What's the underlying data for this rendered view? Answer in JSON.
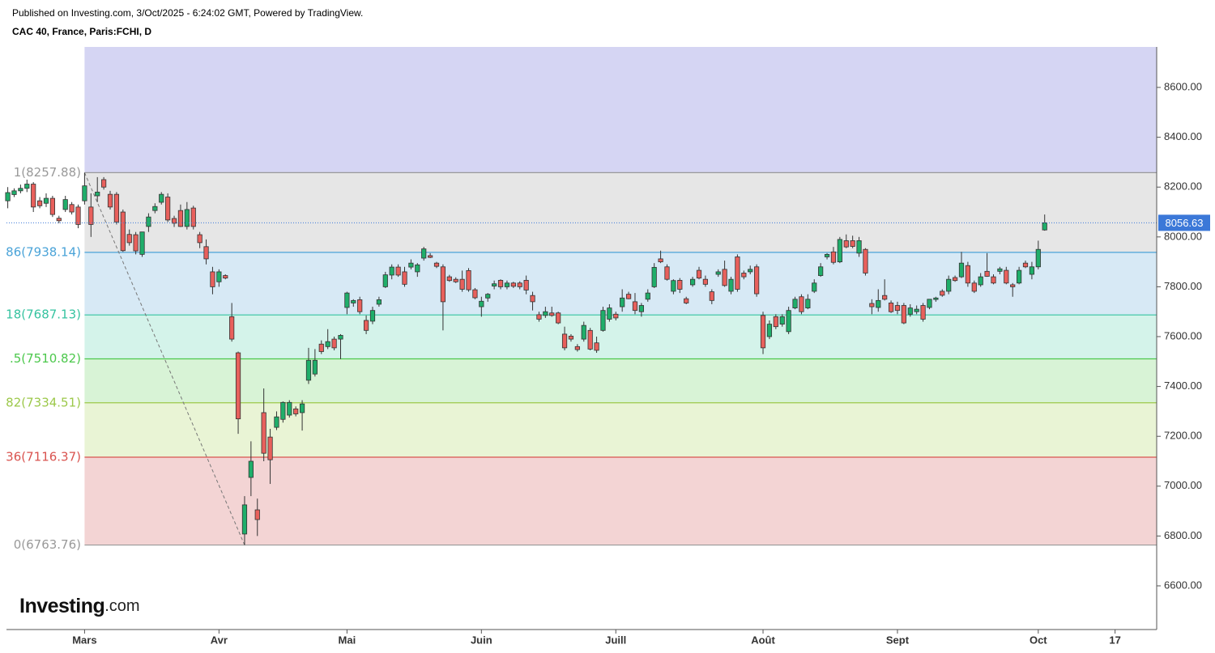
{
  "header": {
    "published": "Published on Investing.com, 3/Oct/2025 - 6:24:02 GMT, Powered by TradingView.",
    "instrument": "CAC 40, France, Paris:FCHI, D"
  },
  "logo": {
    "brand": "Investing",
    "suffix": ".com"
  },
  "chart_data": {
    "type": "candlestick",
    "up_color": "#1fae6a",
    "down_color": "#e8605c",
    "outline_color": "#333333",
    "last_price_color": "#3b78d8",
    "xlim": [
      -0.2,
      179.5
    ],
    "xticks": [
      {
        "value": 12,
        "label": "Mars"
      },
      {
        "value": 33,
        "label": "Avr"
      },
      {
        "value": 53,
        "label": "Mai"
      },
      {
        "value": 74,
        "label": "Juin"
      },
      {
        "value": 95,
        "label": "Juill"
      },
      {
        "value": 118,
        "label": "Août"
      },
      {
        "value": 139,
        "label": "Sept"
      },
      {
        "value": 161,
        "label": "Oct"
      },
      {
        "value": 173,
        "label": "17"
      }
    ],
    "ylim": [
      6424.7,
      8762.4
    ],
    "yticks": [
      {
        "value": 6600,
        "label": "6600.00"
      },
      {
        "value": 6800,
        "label": "6800.00"
      },
      {
        "value": 7000,
        "label": "7000.00"
      },
      {
        "value": 7200,
        "label": "7200.00"
      },
      {
        "value": 7400,
        "label": "7400.00"
      },
      {
        "value": 7600,
        "label": "7600.00"
      },
      {
        "value": 7800,
        "label": "7800.00"
      },
      {
        "value": 8000,
        "label": "8000.00"
      },
      {
        "value": 8200,
        "label": "8200.00"
      },
      {
        "value": 8400,
        "label": "8400.00"
      },
      {
        "value": 8600,
        "label": "8600.00"
      }
    ],
    "fib": {
      "top_fill": "#d5d5f3",
      "levels": [
        {
          "value": 8257.88,
          "label": "1(8257.88)",
          "color": "#999999",
          "fill": "#e6e6e6"
        },
        {
          "value": 7938.14,
          "label": "86(7938.14)",
          "color": "#4aa3d8",
          "fill": "#d7e9f5"
        },
        {
          "value": 7687.13,
          "label": "18(7687.13)",
          "color": "#36c3a0",
          "fill": "#d4f3ea"
        },
        {
          "value": 7510.82,
          "label": ".5(7510.82)",
          "color": "#4cc84c",
          "fill": "#d8f3d6"
        },
        {
          "value": 7334.51,
          "label": "82(7334.51)",
          "color": "#9cc84a",
          "fill": "#e9f4d5"
        },
        {
          "value": 7116.37,
          "label": "36(7116.37)",
          "color": "#d9534f",
          "fill": "#f3d4d4"
        },
        {
          "value": 6763.76,
          "label": "0(6763.76)",
          "color": "#999999"
        }
      ]
    },
    "ohlc": [
      [
        8145,
        8200,
        8115,
        8178
      ],
      [
        8170,
        8195,
        8160,
        8185
      ],
      [
        8185,
        8210,
        8175,
        8195
      ],
      [
        8195,
        8230,
        8180,
        8212
      ],
      [
        8212,
        8220,
        8100,
        8120
      ],
      [
        8145,
        8160,
        8115,
        8125
      ],
      [
        8135,
        8175,
        8120,
        8155
      ],
      [
        8155,
        8165,
        8080,
        8090
      ],
      [
        8075,
        8085,
        8055,
        8065
      ],
      [
        8110,
        8165,
        8100,
        8150
      ],
      [
        8130,
        8140,
        8090,
        8100
      ],
      [
        8120,
        8130,
        8035,
        8050
      ],
      [
        8145,
        8257.88,
        8130,
        8205
      ],
      [
        8120,
        8175,
        8000,
        8050
      ],
      [
        8165,
        8240,
        8140,
        8180
      ],
      [
        8230,
        8240,
        8190,
        8200
      ],
      [
        8171,
        8185,
        8110,
        8120
      ],
      [
        8171,
        8180,
        8050,
        8060
      ],
      [
        8100,
        8110,
        7940,
        7945
      ],
      [
        8010,
        8030,
        7965,
        7977
      ],
      [
        8009,
        8020,
        7930,
        7944
      ],
      [
        7930,
        8020,
        7920,
        8020
      ],
      [
        8042,
        8095,
        8020,
        8080
      ],
      [
        8106,
        8135,
        8095,
        8122
      ],
      [
        8139,
        8180,
        8130,
        8171
      ],
      [
        8160,
        8175,
        8060,
        8068
      ],
      [
        8074,
        8085,
        8040,
        8055
      ],
      [
        8106,
        8130,
        8040,
        8042
      ],
      [
        8042,
        8140,
        8030,
        8110
      ],
      [
        8116,
        8125,
        8030,
        8042
      ],
      [
        8009,
        8020,
        7955,
        7977
      ],
      [
        7961,
        7990,
        7890,
        7912
      ],
      [
        7860,
        7880,
        7770,
        7800
      ],
      [
        7820,
        7870,
        7800,
        7860
      ],
      [
        7845,
        7850,
        7830,
        7835
      ],
      [
        7680,
        7735,
        7580,
        7590
      ],
      [
        7535,
        7540,
        7210,
        7270
      ],
      [
        6808,
        6960,
        6763.76,
        6925
      ],
      [
        7035,
        7180,
        6960,
        7100
      ],
      [
        6905,
        6950,
        6800,
        6866
      ],
      [
        7295,
        7392,
        7100,
        7132
      ],
      [
        7197,
        7230,
        7009,
        7106
      ],
      [
        7236,
        7300,
        7225,
        7278
      ],
      [
        7268,
        7340,
        7255,
        7336
      ],
      [
        7285,
        7345,
        7275,
        7336
      ],
      [
        7310,
        7320,
        7280,
        7290
      ],
      [
        7295,
        7345,
        7223,
        7330
      ],
      [
        7425,
        7555,
        7410,
        7505
      ],
      [
        7450,
        7550,
        7440,
        7505
      ],
      [
        7570,
        7585,
        7530,
        7540
      ],
      [
        7560,
        7630,
        7550,
        7580
      ],
      [
        7590,
        7600,
        7545,
        7555
      ],
      [
        7590,
        7610,
        7510,
        7605
      ],
      [
        7717,
        7780,
        7690,
        7775
      ],
      [
        7735,
        7750,
        7720,
        7745
      ],
      [
        7748,
        7760,
        7690,
        7700
      ],
      [
        7665,
        7685,
        7610,
        7625
      ],
      [
        7662,
        7720,
        7650,
        7705
      ],
      [
        7730,
        7760,
        7720,
        7748
      ],
      [
        7800,
        7860,
        7795,
        7848
      ],
      [
        7847,
        7890,
        7830,
        7879
      ],
      [
        7879,
        7890,
        7840,
        7847
      ],
      [
        7860,
        7880,
        7800,
        7810
      ],
      [
        7879,
        7910,
        7870,
        7895
      ],
      [
        7860,
        7895,
        7840,
        7888
      ],
      [
        7915,
        7960,
        7905,
        7952
      ],
      [
        7925,
        7935,
        7915,
        7918
      ],
      [
        7895,
        7900,
        7875,
        7882
      ],
      [
        7880,
        7890,
        7625,
        7740
      ],
      [
        7840,
        7848,
        7820,
        7825
      ],
      [
        7830,
        7838,
        7815,
        7820
      ],
      [
        7830,
        7865,
        7780,
        7790
      ],
      [
        7865,
        7875,
        7780,
        7788
      ],
      [
        7788,
        7795,
        7750,
        7756
      ],
      [
        7720,
        7760,
        7680,
        7742
      ],
      [
        7755,
        7775,
        7740,
        7770
      ],
      [
        7803,
        7825,
        7790,
        7812
      ],
      [
        7826,
        7830,
        7790,
        7800
      ],
      [
        7800,
        7825,
        7790,
        7815
      ],
      [
        7815,
        7820,
        7795,
        7802
      ],
      [
        7815,
        7822,
        7790,
        7800
      ],
      [
        7826,
        7845,
        7770,
        7787
      ],
      [
        7765,
        7780,
        7705,
        7740
      ],
      [
        7688,
        7700,
        7660,
        7670
      ],
      [
        7685,
        7720,
        7675,
        7700
      ],
      [
        7695,
        7720,
        7680,
        7685
      ],
      [
        7695,
        7700,
        7650,
        7655
      ],
      [
        7610,
        7640,
        7545,
        7555
      ],
      [
        7602,
        7610,
        7580,
        7590
      ],
      [
        7560,
        7570,
        7540,
        7548
      ],
      [
        7590,
        7660,
        7580,
        7645
      ],
      [
        7625,
        7635,
        7545,
        7550
      ],
      [
        7575,
        7600,
        7535,
        7545
      ],
      [
        7625,
        7720,
        7620,
        7705
      ],
      [
        7670,
        7730,
        7660,
        7715
      ],
      [
        7690,
        7700,
        7665,
        7675
      ],
      [
        7720,
        7790,
        7700,
        7755
      ],
      [
        7770,
        7780,
        7750,
        7752
      ],
      [
        7740,
        7775,
        7690,
        7705
      ],
      [
        7700,
        7735,
        7680,
        7725
      ],
      [
        7750,
        7790,
        7740,
        7775
      ],
      [
        7800,
        7895,
        7795,
        7878
      ],
      [
        7912,
        7945,
        7895,
        7900
      ],
      [
        7880,
        7890,
        7825,
        7830
      ],
      [
        7782,
        7830,
        7770,
        7825
      ],
      [
        7826,
        7835,
        7775,
        7790
      ],
      [
        7752,
        7760,
        7730,
        7735
      ],
      [
        7808,
        7840,
        7800,
        7830
      ],
      [
        7866,
        7880,
        7830,
        7835
      ],
      [
        7830,
        7845,
        7800,
        7810
      ],
      [
        7780,
        7790,
        7730,
        7745
      ],
      [
        7850,
        7870,
        7840,
        7860
      ],
      [
        7870,
        7905,
        7800,
        7805
      ],
      [
        7782,
        7840,
        7770,
        7830
      ],
      [
        7920,
        7930,
        7780,
        7790
      ],
      [
        7855,
        7865,
        7830,
        7840
      ],
      [
        7860,
        7885,
        7850,
        7870
      ],
      [
        7880,
        7890,
        7760,
        7772
      ],
      [
        7685,
        7700,
        7530,
        7555
      ],
      [
        7600,
        7665,
        7590,
        7650
      ],
      [
        7680,
        7690,
        7630,
        7640
      ],
      [
        7650,
        7690,
        7640,
        7680
      ],
      [
        7620,
        7720,
        7610,
        7705
      ],
      [
        7715,
        7760,
        7710,
        7750
      ],
      [
        7760,
        7770,
        7690,
        7700
      ],
      [
        7715,
        7770,
        7710,
        7750
      ],
      [
        7782,
        7830,
        7775,
        7815
      ],
      [
        7845,
        7895,
        7840,
        7880
      ],
      [
        7920,
        7935,
        7910,
        7930
      ],
      [
        7940,
        7960,
        7890,
        7898
      ],
      [
        7900,
        8000,
        7895,
        7990
      ],
      [
        7985,
        8010,
        7955,
        7960
      ],
      [
        7985,
        8005,
        7955,
        7962
      ],
      [
        7935,
        8000,
        7920,
        7985
      ],
      [
        7950,
        7955,
        7845,
        7855
      ],
      [
        7733,
        7750,
        7690,
        7720
      ],
      [
        7717,
        7790,
        7700,
        7745
      ],
      [
        7765,
        7830,
        7745,
        7750
      ],
      [
        7735,
        7745,
        7695,
        7700
      ],
      [
        7725,
        7740,
        7690,
        7705
      ],
      [
        7725,
        7735,
        7650,
        7655
      ],
      [
        7690,
        7730,
        7680,
        7715
      ],
      [
        7700,
        7725,
        7690,
        7710
      ],
      [
        7725,
        7735,
        7660,
        7670
      ],
      [
        7717,
        7750,
        7710,
        7750
      ],
      [
        7749,
        7760,
        7740,
        7755
      ],
      [
        7782,
        7790,
        7760,
        7766
      ],
      [
        7782,
        7845,
        7770,
        7830
      ],
      [
        7837,
        7845,
        7820,
        7825
      ],
      [
        7840,
        7940,
        7835,
        7895
      ],
      [
        7885,
        7900,
        7800,
        7815
      ],
      [
        7815,
        7825,
        7775,
        7782
      ],
      [
        7808,
        7855,
        7800,
        7840
      ],
      [
        7862,
        7935,
        7840,
        7842
      ],
      [
        7840,
        7850,
        7810,
        7815
      ],
      [
        7862,
        7880,
        7850,
        7872
      ],
      [
        7866,
        7880,
        7810,
        7815
      ],
      [
        7808,
        7815,
        7760,
        7800
      ],
      [
        7815,
        7880,
        7810,
        7866
      ],
      [
        7895,
        7905,
        7875,
        7880
      ],
      [
        7850,
        7900,
        7830,
        7880
      ],
      [
        7880,
        7985,
        7870,
        7950
      ],
      [
        8028,
        8090,
        8025,
        8056.63
      ]
    ]
  }
}
